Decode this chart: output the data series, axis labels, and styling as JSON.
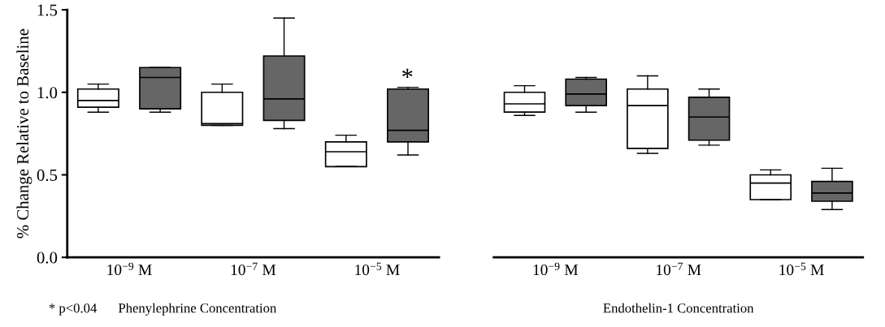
{
  "chart_data": [
    {
      "type": "box",
      "xlabel": "Phenylephrine Concentration",
      "ylabel": "% Change Relative to Baseline",
      "categories": [
        "10$^{−9}$ M",
        "10$^{−7}$ M",
        "10$^{−5}$ M"
      ],
      "ylim": [
        0,
        1.5
      ],
      "yticks": [
        {
          "value": 0,
          "label": "0.0"
        },
        0.5,
        {
          "value": 1,
          "label": "1.0"
        },
        1.5
      ],
      "grid": false,
      "series": [
        {
          "color": "#ffffff",
          "boxes": [
            {
              "low": 0.88,
              "q1": 0.91,
              "median": 0.95,
              "q3": 1.02,
              "high": 1.05
            },
            {
              "low": 0.8,
              "q1": 0.8,
              "median": 0.81,
              "q3": 1.0,
              "high": 1.05
            },
            {
              "low": 0.55,
              "q1": 0.55,
              "median": 0.64,
              "q3": 0.7,
              "high": 0.74
            }
          ]
        },
        {
          "color": "#666666",
          "boxes": [
            {
              "low": 0.88,
              "q1": 0.9,
              "median": 1.09,
              "q3": 1.15,
              "high": 1.15
            },
            {
              "low": 0.78,
              "q1": 0.83,
              "median": 0.96,
              "q3": 1.22,
              "high": 1.45
            },
            {
              "low": 0.62,
              "q1": 0.7,
              "median": 0.77,
              "q3": 1.02,
              "high": 1.03
            }
          ]
        }
      ],
      "annotations": [
        "*",
        "* p<0.04"
      ]
    },
    {
      "type": "box",
      "xlabel": "Endothelin-1 Concentration",
      "categories": [
        "10$^{−9}$ M",
        "10$^{−7}$ M",
        "10$^{−5}$ M"
      ],
      "ylim": [
        0,
        1.5
      ],
      "tick_labels": "x",
      "grid": false,
      "series": [
        {
          "color": "#ffffff",
          "boxes": [
            {
              "low": 0.86,
              "q1": 0.88,
              "median": 0.93,
              "q3": 1.0,
              "high": 1.04
            },
            {
              "low": 0.63,
              "q1": 0.66,
              "median": 0.92,
              "q3": 1.02,
              "high": 1.1
            },
            {
              "low": 0.35,
              "q1": 0.35,
              "median": 0.45,
              "q3": 0.5,
              "high": 0.53
            }
          ]
        },
        {
          "color": "#666666",
          "boxes": [
            {
              "low": 0.88,
              "q1": 0.92,
              "median": 0.99,
              "q3": 1.08,
              "high": 1.09
            },
            {
              "low": 0.68,
              "q1": 0.71,
              "median": 0.85,
              "q3": 0.97,
              "high": 1.02
            },
            {
              "low": 0.29,
              "q1": 0.34,
              "median": 0.39,
              "q3": 0.46,
              "high": 0.54
            }
          ]
        }
      ]
    }
  ]
}
